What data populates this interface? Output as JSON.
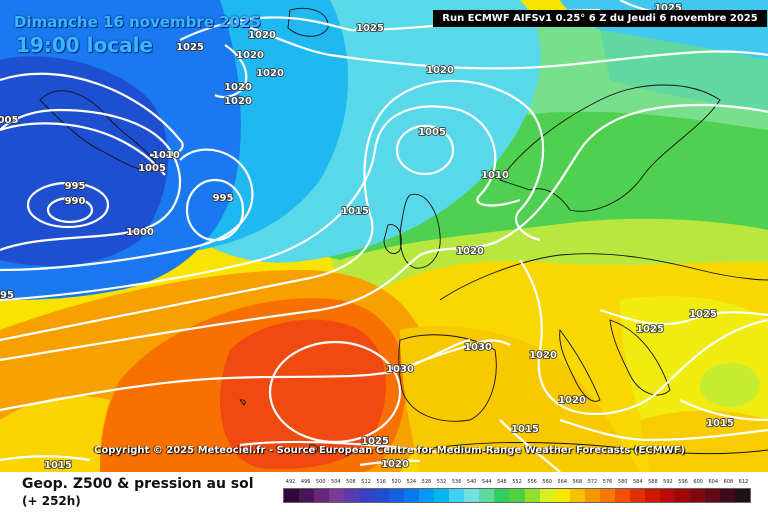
{
  "header": {
    "date": "Dimanche 16 novembre 2025",
    "time": "19:00 locale",
    "run": "Run ECMWF AIFSv1 0.25° 6 Z du Jeudi 6 novembre 2025"
  },
  "copyright": "Copyright © 2025 Meteociel.fr - Source European Centre for Medium-Range Weather Forecasts (ECMWF)",
  "footer": {
    "parameter": "Geop. Z500 & pression au sol",
    "lead_time": "(+ 252h)"
  },
  "legend": {
    "labels": [
      "492",
      "496",
      "500",
      "504",
      "508",
      "512",
      "516",
      "520",
      "524",
      "528",
      "532",
      "536",
      "540",
      "544",
      "548",
      "552",
      "556",
      "560",
      "564",
      "568",
      "572",
      "576",
      "580",
      "584",
      "588",
      "592",
      "596",
      "600",
      "604",
      "608",
      "612"
    ],
    "colors": [
      "#2d0a3a",
      "#4a1558",
      "#6a2478",
      "#7a3a98",
      "#5a3ab0",
      "#3a40c0",
      "#1e4fd0",
      "#1460e0",
      "#0878f0",
      "#0098f8",
      "#00b8f0",
      "#40d0f0",
      "#70e0e0",
      "#60d8a0",
      "#30d060",
      "#50d040",
      "#90e030",
      "#d8f020",
      "#f8e800",
      "#f8c000",
      "#f89800",
      "#f87800",
      "#f05000",
      "#e03000",
      "#d01800",
      "#b80a08",
      "#a00808",
      "#800810",
      "#600a18",
      "#400818",
      "#201010"
    ]
  },
  "isobar_labels": [
    {
      "t": "1025"
    },
    {
      "t": "1025"
    },
    {
      "t": "1020"
    },
    {
      "t": "1020"
    },
    {
      "t": "1020"
    },
    {
      "t": "1020"
    },
    {
      "t": "1020"
    },
    {
      "t": "1020"
    },
    {
      "t": "1025"
    },
    {
      "t": "005"
    },
    {
      "t": "1005"
    },
    {
      "t": "1010"
    },
    {
      "t": "1005"
    },
    {
      "t": "995"
    },
    {
      "t": "990"
    },
    {
      "t": "995"
    },
    {
      "t": "1000"
    },
    {
      "t": "95"
    },
    {
      "t": "1015"
    },
    {
      "t": "1010"
    },
    {
      "t": "1020"
    },
    {
      "t": "1025"
    },
    {
      "t": "1025"
    },
    {
      "t": "1030"
    },
    {
      "t": "1020"
    },
    {
      "t": "1030"
    },
    {
      "t": "1020"
    },
    {
      "t": "1015"
    },
    {
      "t": "1015"
    },
    {
      "t": "1025"
    },
    {
      "t": "1020"
    },
    {
      "t": "1015"
    }
  ]
}
